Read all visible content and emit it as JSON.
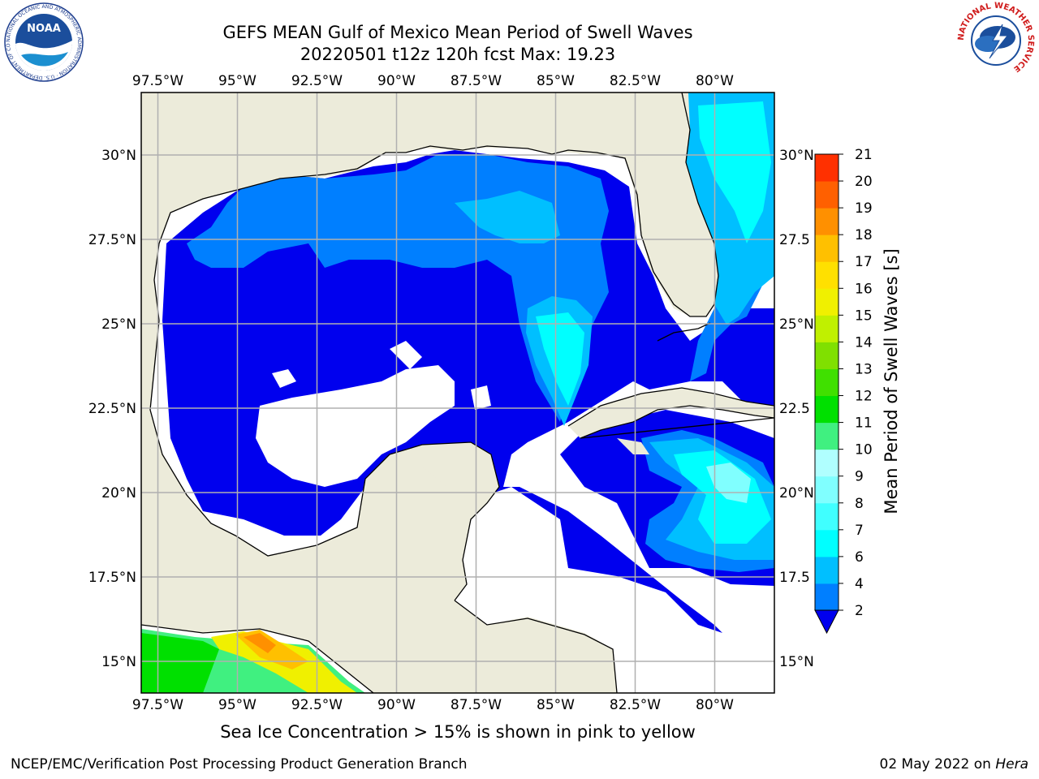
{
  "header": {
    "title_line1": "GEFS MEAN Gulf of Mexico Mean Period of Swell Waves",
    "title_line2": "20220501 t12z 120h fcst   Max: 19.23"
  },
  "map": {
    "lon_ticks": [
      "97.5°W",
      "95°W",
      "92.5°W",
      "90°W",
      "87.5°W",
      "85°W",
      "82.5°W",
      "80°W"
    ],
    "lat_ticks_left": [
      "30°N",
      "27.5°N",
      "25°N",
      "22.5°N",
      "20°N",
      "17.5°N",
      "15°N"
    ],
    "lat_ticks_right": [
      "30°N",
      "27.5",
      "25°N",
      "22.5",
      "20°N",
      "17.5",
      "15°N"
    ],
    "colors": {
      "land": "#ecebda",
      "ocean_no_swell": "#ffffff",
      "grid": "#b0b0b0",
      "coast": "#000000"
    }
  },
  "colorbar": {
    "label": "Mean Period of Swell Waves [s]",
    "ticks": [
      "2",
      "4",
      "6",
      "7",
      "8",
      "9",
      "10",
      "11",
      "12",
      "13",
      "14",
      "15",
      "16",
      "17",
      "18",
      "19",
      "20",
      "21"
    ],
    "tick_values": [
      2,
      4,
      6,
      7,
      8,
      9,
      10,
      11,
      12,
      13,
      14,
      15,
      16,
      17,
      18,
      19,
      20,
      21
    ],
    "colors": [
      "#007fff",
      "#00bfff",
      "#00ffff",
      "#40ffff",
      "#80ffff",
      "#b0ffff",
      "#40f080",
      "#00e000",
      "#40e000",
      "#80e000",
      "#c0f000",
      "#f0f000",
      "#ffe000",
      "#ffc000",
      "#ff9000",
      "#ff6000",
      "#ff3000",
      "#ff0000"
    ],
    "under_color": "#0000ee"
  },
  "footer": {
    "note": "Sea Ice Concentration > 15% is shown in pink to yellow",
    "credit": "NCEP/EMC/Verification Post Processing Product Generation Branch",
    "date_prefix": "02 May 2022 on ",
    "date_host": "Hera"
  },
  "logos": {
    "noaa_text": "NOAA",
    "noaa_ring": "NATIONAL OCEANIC AND ATMOSPHERIC ADMINISTRATION · U.S. DEPARTMENT OF COMMERCE",
    "nws_ring": "NATIONAL WEATHER SERVICE"
  }
}
